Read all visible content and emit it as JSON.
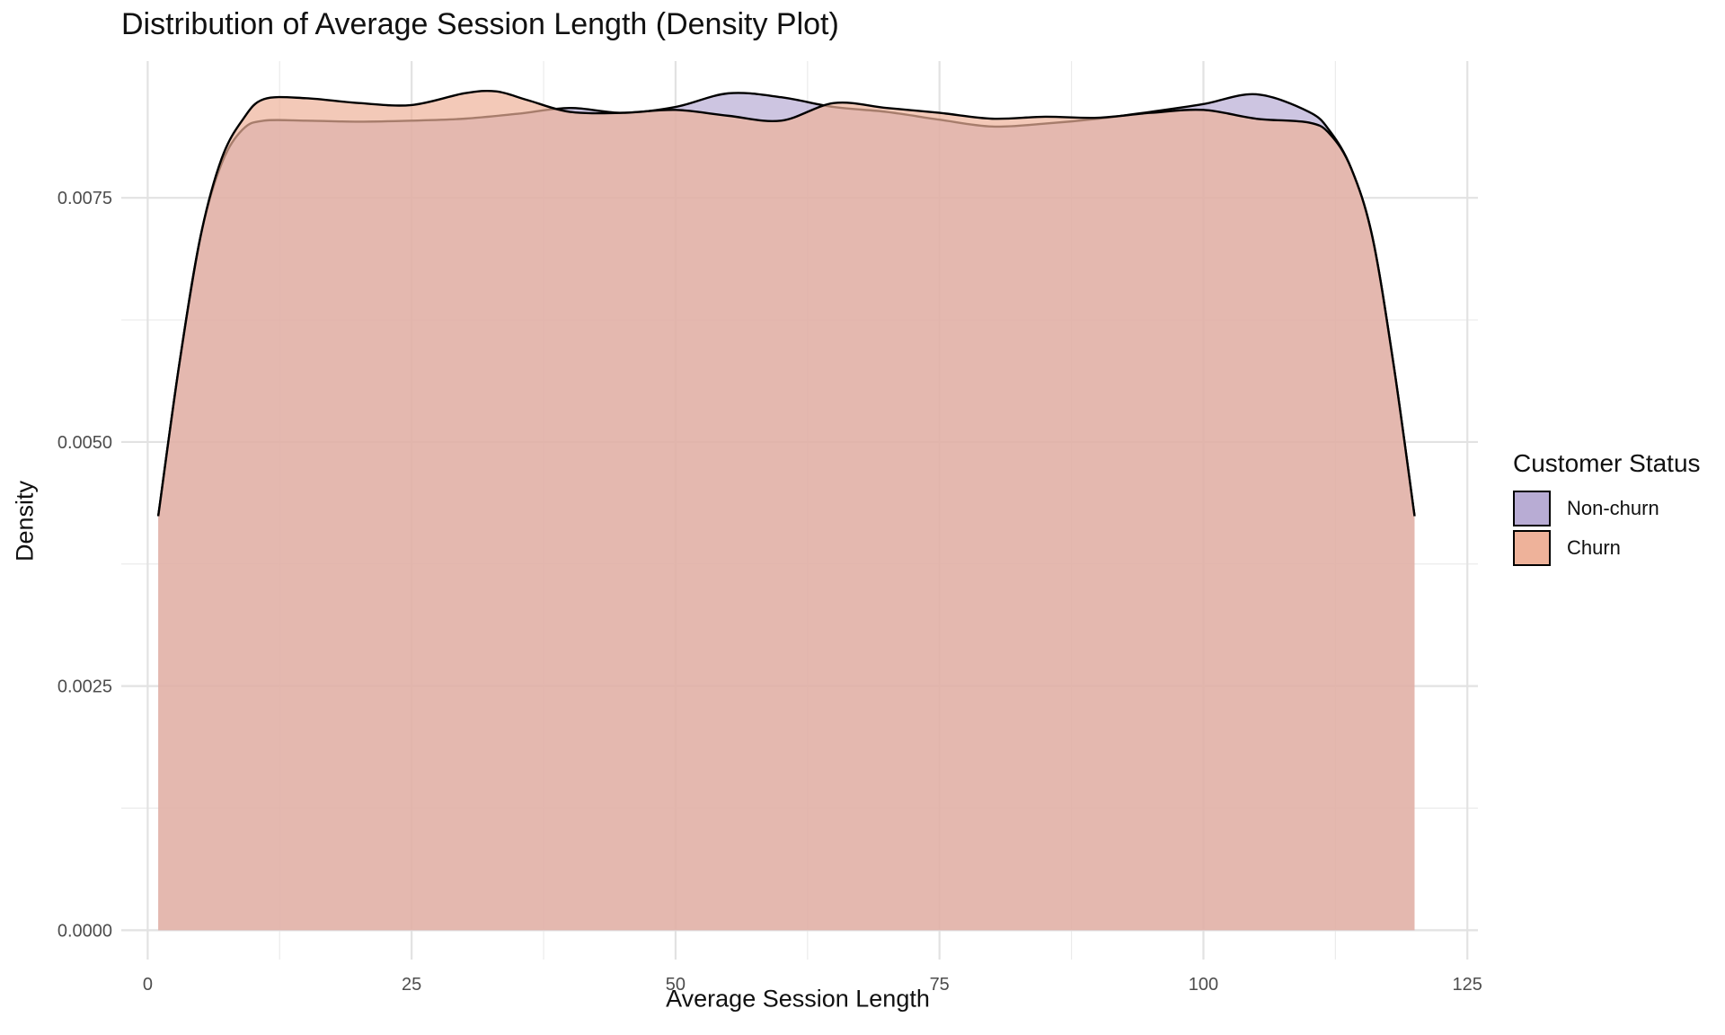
{
  "chart_data": {
    "type": "area",
    "title": "Distribution of Average Session Length (Density Plot)",
    "xlabel": "Average Session Length",
    "ylabel": "Density",
    "xlim": [
      -2.5,
      126
    ],
    "ylim": [
      -0.0003,
      0.0089
    ],
    "x_ticks": [
      0,
      25,
      50,
      75,
      100,
      125
    ],
    "x_tick_labels": [
      "0",
      "25",
      "50",
      "75",
      "100",
      "125"
    ],
    "y_ticks": [
      0,
      0.0025,
      0.005,
      0.0075
    ],
    "y_tick_labels": [
      "0.0000",
      "0.0025",
      "0.0050",
      "0.0075"
    ],
    "grid": true,
    "legend": {
      "title": "Customer Status",
      "position": "right"
    },
    "series": [
      {
        "name": "Non-churn",
        "color": "#b8acd4",
        "x": [
          1,
          3,
          5,
          7,
          9,
          11,
          15,
          20,
          25,
          30,
          35,
          40,
          45,
          50,
          55,
          60,
          65,
          70,
          75,
          80,
          85,
          90,
          95,
          100,
          105,
          110,
          112,
          114,
          116,
          118,
          120
        ],
        "y": [
          0.00424,
          0.0058,
          0.0071,
          0.00785,
          0.0082,
          0.00829,
          0.00829,
          0.00828,
          0.00829,
          0.00831,
          0.00836,
          0.00842,
          0.00837,
          0.00843,
          0.00857,
          0.00853,
          0.00843,
          0.00838,
          0.0083,
          0.00823,
          0.00826,
          0.00831,
          0.00838,
          0.00846,
          0.00856,
          0.00838,
          0.00818,
          0.0078,
          0.0071,
          0.0058,
          0.00424
        ]
      },
      {
        "name": "Churn",
        "color": "#eeb29a",
        "x": [
          1,
          3,
          5,
          7,
          9,
          11,
          15,
          20,
          25,
          30,
          33,
          36,
          40,
          45,
          50,
          55,
          60,
          65,
          70,
          75,
          80,
          85,
          90,
          95,
          100,
          105,
          110,
          112,
          114,
          116,
          118,
          120
        ],
        "y": [
          0.00424,
          0.0058,
          0.0071,
          0.0079,
          0.0083,
          0.00851,
          0.00852,
          0.00847,
          0.00845,
          0.00857,
          0.00859,
          0.0085,
          0.00838,
          0.00837,
          0.0084,
          0.00834,
          0.00829,
          0.00847,
          0.00842,
          0.00837,
          0.00831,
          0.00833,
          0.00832,
          0.00837,
          0.0084,
          0.00831,
          0.00827,
          0.00815,
          0.0078,
          0.0071,
          0.0058,
          0.00424
        ]
      }
    ]
  }
}
